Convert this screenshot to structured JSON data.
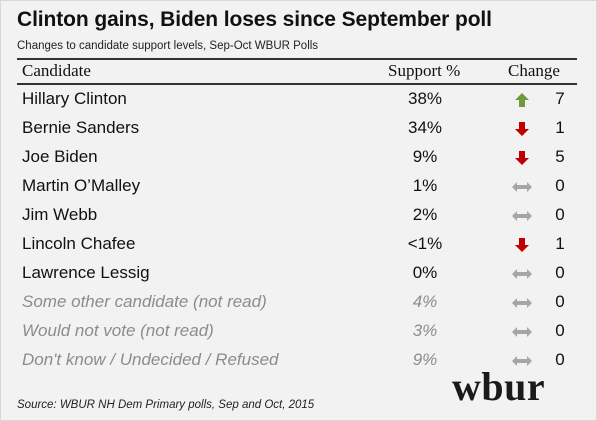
{
  "title": "Clinton gains, Biden loses since September poll",
  "subtitle": "Changes to candidate support levels, Sep-Oct WBUR Polls",
  "source": "Source: WBUR NH Dem Primary polls, Sep and Oct, 2015",
  "logo_text": "wbur",
  "colors": {
    "up": "#6e9a3c",
    "down": "#c00000",
    "flat": "#a6a6a6",
    "muted_text": "#8c8c8c"
  },
  "chart_data": {
    "type": "table",
    "columns": [
      "Candidate",
      "Support %",
      "Change"
    ],
    "rows": [
      {
        "candidate": "Hillary Clinton",
        "support": "38%",
        "direction": "up",
        "change": "7",
        "muted": false
      },
      {
        "candidate": "Bernie Sanders",
        "support": "34%",
        "direction": "down",
        "change": "1",
        "muted": false
      },
      {
        "candidate": "Joe Biden",
        "support": "9%",
        "direction": "down",
        "change": "5",
        "muted": false
      },
      {
        "candidate": "Martin O’Malley",
        "support": "1%",
        "direction": "flat",
        "change": "0",
        "muted": false
      },
      {
        "candidate": "Jim Webb",
        "support": "2%",
        "direction": "flat",
        "change": "0",
        "muted": false
      },
      {
        "candidate": "Lincoln Chafee",
        "support": "<1%",
        "direction": "down",
        "change": "1",
        "muted": false
      },
      {
        "candidate": "Lawrence Lessig",
        "support": "0%",
        "direction": "flat",
        "change": "0",
        "muted": false
      },
      {
        "candidate": "Some other candidate (not read)",
        "support": "4%",
        "direction": "flat",
        "change": "0",
        "muted": true
      },
      {
        "candidate": "Would not vote (not read)",
        "support": "3%",
        "direction": "flat",
        "change": "0",
        "muted": true
      },
      {
        "candidate": "Don't know / Undecided / Refused",
        "support": "9%",
        "direction": "flat",
        "change": "0",
        "muted": true
      }
    ]
  }
}
